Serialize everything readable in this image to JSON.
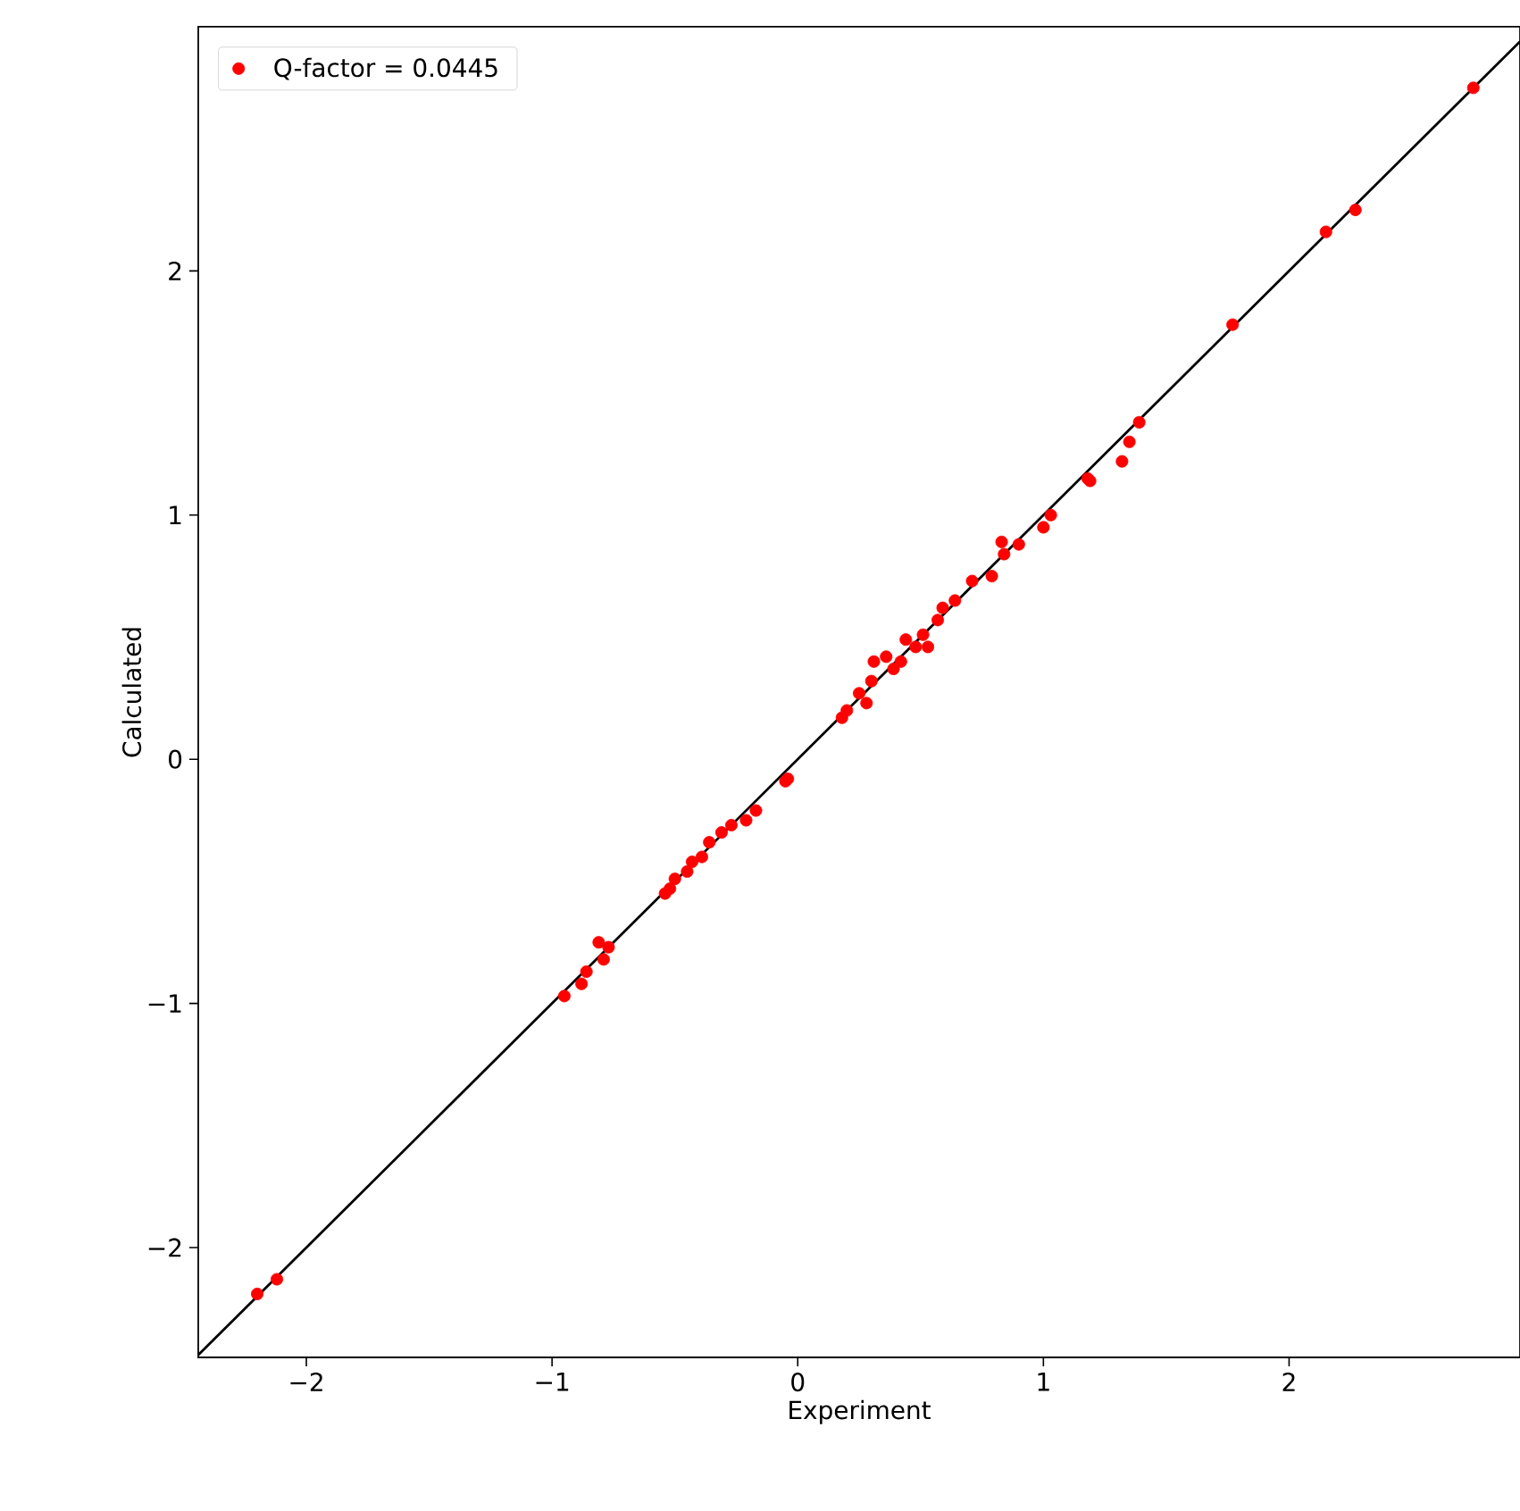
{
  "chart_data": {
    "type": "scatter",
    "xlabel": "Experiment",
    "ylabel": "Calculated",
    "xlim": [
      -2.44,
      2.94
    ],
    "ylim": [
      -2.45,
      3.0
    ],
    "xticks": [
      {
        "value": -2,
        "label": "−2"
      },
      {
        "value": -1,
        "label": "−1"
      },
      0,
      1,
      2
    ],
    "yticks": [
      {
        "value": -2,
        "label": "−2"
      },
      {
        "value": -1,
        "label": "−1"
      },
      0,
      1,
      2
    ],
    "legend": "top left",
    "grid": false,
    "series": [
      {
        "name": "Q-factor = 0.0445",
        "color": "#ff0000",
        "marker": "circle",
        "x": [
          2.75,
          2.27,
          2.15,
          1.77,
          1.39,
          1.35,
          1.32,
          1.19,
          1.18,
          1.03,
          1.0,
          0.9,
          0.83,
          0.84,
          0.79,
          0.71,
          0.64,
          0.59,
          0.57,
          0.51,
          0.53,
          0.48,
          0.44,
          0.36,
          0.31,
          0.42,
          0.39,
          0.3,
          0.25,
          0.28,
          0.2,
          0.18,
          -0.04,
          -0.05,
          -0.17,
          -0.21,
          -0.27,
          -0.31,
          -0.36,
          -0.39,
          -0.43,
          -0.45,
          -0.5,
          -0.52,
          -0.54,
          -0.77,
          -0.79,
          -0.81,
          -0.86,
          -0.88,
          -0.95,
          -2.12,
          -2.2
        ],
        "values": [
          2.75,
          2.25,
          2.16,
          1.78,
          1.38,
          1.3,
          1.22,
          1.14,
          1.15,
          1.0,
          0.95,
          0.88,
          0.89,
          0.84,
          0.75,
          0.73,
          0.65,
          0.62,
          0.57,
          0.51,
          0.46,
          0.46,
          0.49,
          0.42,
          0.4,
          0.4,
          0.37,
          0.32,
          0.27,
          0.23,
          0.2,
          0.17,
          -0.08,
          -0.09,
          -0.21,
          -0.25,
          -0.27,
          -0.3,
          -0.34,
          -0.4,
          -0.42,
          -0.46,
          -0.49,
          -0.53,
          -0.55,
          -0.77,
          -0.82,
          -0.75,
          -0.87,
          -0.92,
          -0.97,
          -2.13,
          -2.19
        ]
      },
      {
        "color": "#000000",
        "type": "line",
        "line_style": "solid",
        "marker": "none",
        "x": [
          -2.44,
          2.94
        ],
        "values": [
          -2.44,
          2.94
        ]
      }
    ]
  }
}
